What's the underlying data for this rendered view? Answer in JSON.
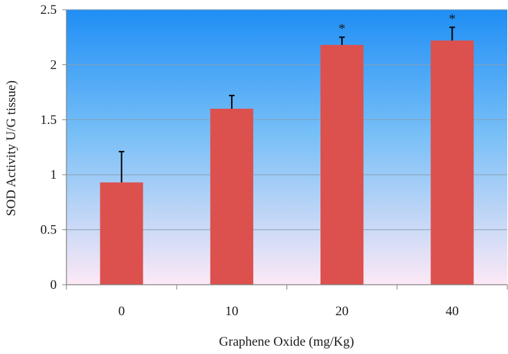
{
  "chart_data": {
    "type": "bar",
    "categories": [
      "0",
      "10",
      "20",
      "40"
    ],
    "values": [
      0.93,
      1.6,
      2.18,
      2.22
    ],
    "error_plus": [
      0.28,
      0.12,
      0.07,
      0.12
    ],
    "annotations": [
      "",
      "",
      "*",
      "*"
    ],
    "xlabel": "Graphene Oxide (mg/Kg)",
    "ylabel": "SOD Activity U/G tissue)",
    "ylim": [
      0,
      2.5
    ],
    "yticks": [
      0,
      0.5,
      1,
      1.5,
      2,
      2.5
    ],
    "ytick_labels": [
      "0",
      "0.5",
      "1",
      "1.5",
      "2",
      "2.5"
    ],
    "grid": true,
    "legend": "none",
    "colors": {
      "bar": "#dc504e",
      "error_bar": "#000000",
      "gridline": "#8aa0b4",
      "axis": "#7f7f7f",
      "background_top": "#1f8ef5",
      "background_bottom": "#fde9f6"
    }
  }
}
